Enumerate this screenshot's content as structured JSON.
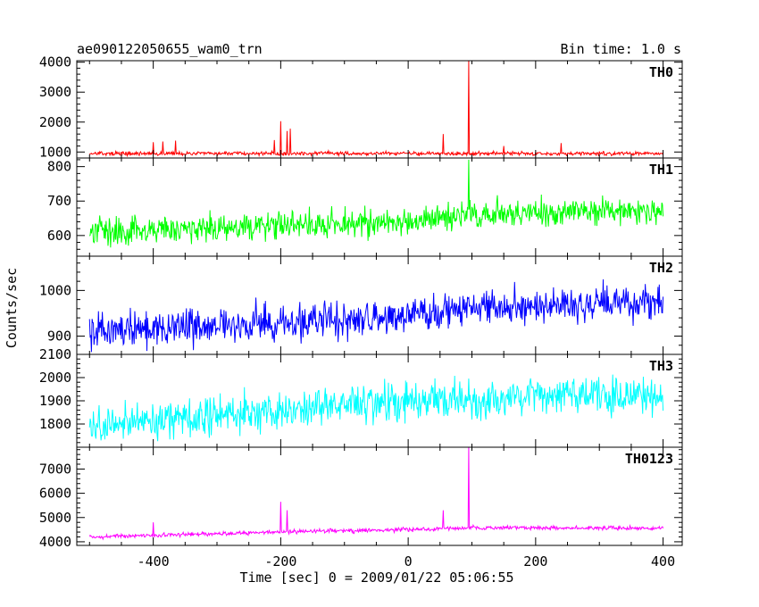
{
  "chart_data": {
    "type": "line",
    "title": "ae090122050655_wam0_trn",
    "subtitle": "Bin time: 1.0 s",
    "xlabel": "Time [sec] 0 = 2009/01/22 05:06:55",
    "ylabel": "Counts/sec",
    "xlim": [
      -520,
      430
    ],
    "xticks": [
      -400,
      -200,
      0,
      200,
      400
    ],
    "x_range": [
      -500,
      400
    ],
    "grid": false,
    "panels": [
      {
        "label": "TH0",
        "color": "#ff0000",
        "ylim": [
          800,
          4050
        ],
        "yticks": [
          1000,
          2000,
          3000,
          4000
        ],
        "trend": [
          [
            -500,
            950
          ],
          [
            400,
            950
          ]
        ],
        "noise": 45,
        "spikes": [
          [
            -400,
            1330
          ],
          [
            -385,
            1350
          ],
          [
            -365,
            1380
          ],
          [
            -210,
            1400
          ],
          [
            -200,
            2030
          ],
          [
            -190,
            1700
          ],
          [
            -185,
            1780
          ],
          [
            55,
            1600
          ],
          [
            95,
            4050
          ],
          [
            150,
            1200
          ],
          [
            240,
            1300
          ]
        ]
      },
      {
        "label": "TH1",
        "color": "#00ff00",
        "ylim": [
          540,
          825
        ],
        "yticks": [
          600,
          700,
          800
        ],
        "trend": [
          [
            -500,
            610
          ],
          [
            -200,
            628
          ],
          [
            0,
            640
          ],
          [
            100,
            660
          ],
          [
            400,
            672
          ]
        ],
        "noise": 30,
        "spikes": [
          [
            95,
            820
          ]
        ]
      },
      {
        "label": "TH2",
        "color": "#0000ff",
        "ylim": [
          860,
          1075
        ],
        "yticks": [
          900,
          1000
        ],
        "trend": [
          [
            -500,
            910
          ],
          [
            -200,
            928
          ],
          [
            0,
            945
          ],
          [
            100,
            960
          ],
          [
            400,
            975
          ]
        ],
        "noise": 28,
        "spikes": []
      },
      {
        "label": "TH3",
        "color": "#00ffff",
        "ylim": [
          1700,
          2100
        ],
        "yticks": [
          1800,
          1900,
          2000,
          2100
        ],
        "trend": [
          [
            -500,
            1790
          ],
          [
            -200,
            1860
          ],
          [
            0,
            1900
          ],
          [
            200,
            1915
          ],
          [
            400,
            1920
          ]
        ],
        "noise": 60,
        "spikes": []
      },
      {
        "label": "TH0123",
        "color": "#ff00ff",
        "ylim": [
          3850,
          7900
        ],
        "yticks": [
          4000,
          5000,
          6000,
          7000
        ],
        "trend": [
          [
            -500,
            4200
          ],
          [
            -200,
            4400
          ],
          [
            0,
            4500
          ],
          [
            100,
            4580
          ],
          [
            400,
            4560
          ]
        ],
        "noise": 60,
        "spikes": [
          [
            -200,
            5650
          ],
          [
            -190,
            5300
          ],
          [
            55,
            5300
          ],
          [
            95,
            7900
          ],
          [
            -400,
            4800
          ]
        ]
      }
    ]
  }
}
